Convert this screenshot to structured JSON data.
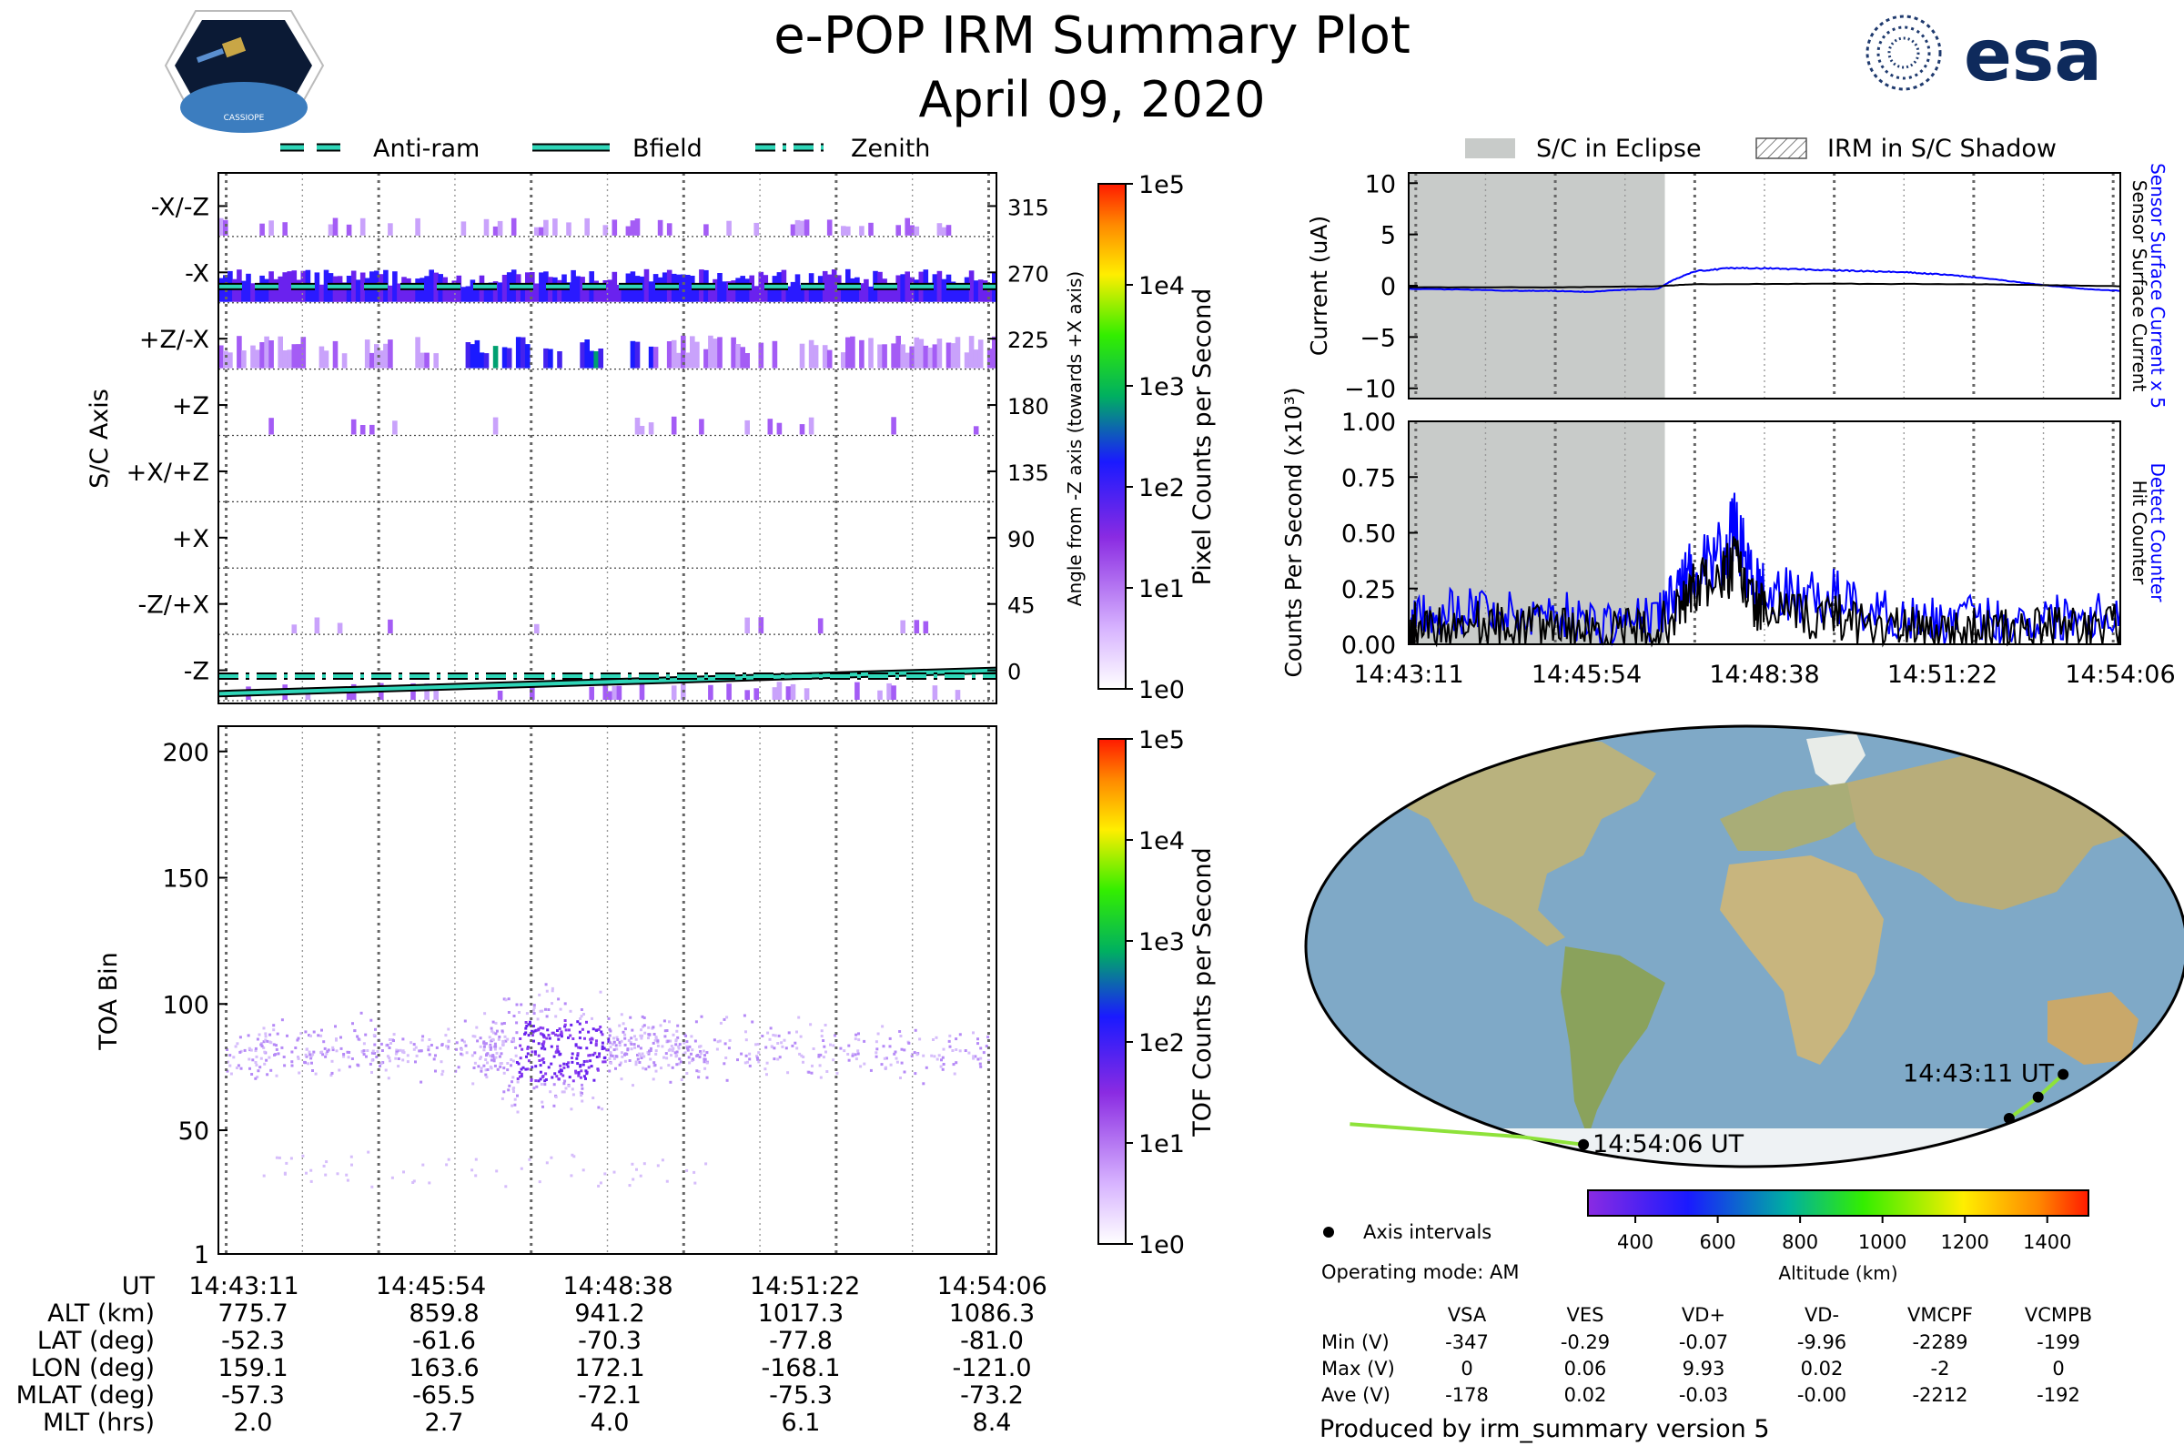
{
  "header": {
    "title_line1": "e-POP IRM Summary Plot",
    "title_line2": "April 09, 2020",
    "mission_logo_text": "CASSIOPE",
    "agency_logo_text": "esa"
  },
  "colors": {
    "legend_line": "#2fd6b8",
    "line_black": "#000000",
    "line_blue": "#0000ff",
    "eclipse_fill": "#c8cbc9",
    "ocean": "#7fa9c7",
    "land": "#c9c29a",
    "ice": "#eef2f4",
    "track": "#8ee23a"
  },
  "legends": {
    "top_left": {
      "anti_ram": "Anti-ram",
      "bfield": "Bfield",
      "zenith": "Zenith"
    },
    "top_right": {
      "eclipse": "S/C in Eclipse",
      "shadow": "IRM in S/C Shadow"
    },
    "map": {
      "axis_intervals": "Axis intervals"
    }
  },
  "time_ticks": [
    "14:43:11",
    "14:45:54",
    "14:48:38",
    "14:51:22",
    "14:54:06"
  ],
  "chart_data": [
    {
      "id": "sc-axis",
      "type": "heatmap",
      "title": "",
      "ylabel": "S/C Axis",
      "ylabel_right": "Angle from -Z axis (towards +X axis)",
      "categories": [
        "-X/-Z",
        "-X",
        "+Z/-X",
        "+Z",
        "+X/+Z",
        "+X",
        "-Z/+X",
        "-Z"
      ],
      "right_ticks": [
        "315",
        "270",
        "225",
        "180",
        "135",
        "90",
        "45",
        "0"
      ],
      "row_activity": [
        0.25,
        0.95,
        0.6,
        0.05,
        0.0,
        0.0,
        0.02,
        0.15
      ],
      "colorbar": {
        "label": "Pixel Counts per Second",
        "ticks": [
          "1e5",
          "1e4",
          "1e3",
          "1e2",
          "1e1",
          "1e0"
        ]
      },
      "series": [
        {
          "name": "Anti-ram",
          "angle_deg": [
            266,
            266
          ]
        },
        {
          "name": "Bfield",
          "angle_deg": [
            -12,
            4
          ]
        },
        {
          "name": "Zenith",
          "angle_deg": [
            0,
            0
          ]
        }
      ]
    },
    {
      "id": "toa",
      "type": "heatmap",
      "ylabel": "TOA Bin",
      "yticks": [
        "200",
        "150",
        "100",
        "50",
        "1"
      ],
      "ylim": [
        1,
        210
      ],
      "colorbar": {
        "label": "TOF Counts per Second",
        "ticks": [
          "1e5",
          "1e4",
          "1e3",
          "1e2",
          "1e1",
          "1e0"
        ]
      },
      "cluster_center_bin": 82
    },
    {
      "id": "current",
      "type": "line",
      "ylabel": "Current (uA)",
      "ylabel_right_1": "Sensor Surface Current x 5",
      "ylabel_right_2": "Sensor Surface Current",
      "yticks": [
        "10",
        "5",
        "0",
        "−5",
        "−10"
      ],
      "ylim": [
        -11,
        11
      ],
      "eclipse_until_fraction": 0.36,
      "series": [
        {
          "name": "Sensor Surface Current x 5",
          "x": [
            0,
            0.1,
            0.15,
            0.2,
            0.25,
            0.3,
            0.35,
            0.37,
            0.4,
            0.45,
            0.5,
            0.55,
            0.6,
            0.65,
            0.7,
            0.75,
            0.8,
            0.85,
            0.9,
            0.95,
            1.0
          ],
          "y": [
            -0.3,
            -0.4,
            -0.5,
            -0.5,
            -0.6,
            -0.4,
            -0.3,
            0.5,
            1.4,
            1.7,
            1.7,
            1.6,
            1.5,
            1.4,
            1.3,
            1.1,
            0.8,
            0.4,
            0.0,
            -0.3,
            -0.5
          ]
        },
        {
          "name": "Sensor Surface Current",
          "x": [
            0,
            0.2,
            0.35,
            0.4,
            0.6,
            0.8,
            0.9,
            1.0
          ],
          "y": [
            -0.15,
            -0.15,
            -0.05,
            0.15,
            0.2,
            0.15,
            0.05,
            -0.05
          ]
        }
      ]
    },
    {
      "id": "counts",
      "type": "line",
      "ylabel": "Counts Per Second (x10³)",
      "ylabel_right_1": "Detect Counter",
      "ylabel_right_2": "Hit Counter",
      "yticks": [
        "1.00",
        "0.75",
        "0.50",
        "0.25",
        "0.00"
      ],
      "ylim": [
        0,
        1.0
      ],
      "eclipse_until_fraction": 0.36,
      "series": [
        {
          "name": "Detect Counter",
          "x": [
            0,
            0.01,
            0.05,
            0.1,
            0.15,
            0.2,
            0.25,
            0.3,
            0.35,
            0.38,
            0.4,
            0.44,
            0.46,
            0.48,
            0.5,
            0.55,
            0.6,
            0.65,
            0.7,
            0.75,
            0.8,
            0.85,
            0.9,
            0.95,
            1.0
          ],
          "y": [
            0.0,
            0.17,
            0.15,
            0.17,
            0.12,
            0.15,
            0.1,
            0.1,
            0.12,
            0.25,
            0.35,
            0.4,
            0.52,
            0.3,
            0.25,
            0.2,
            0.22,
            0.15,
            0.12,
            0.1,
            0.12,
            0.1,
            0.12,
            0.14,
            0.15
          ]
        },
        {
          "name": "Hit Counter",
          "x": [
            0,
            0.01,
            0.05,
            0.1,
            0.15,
            0.2,
            0.25,
            0.3,
            0.35,
            0.38,
            0.4,
            0.44,
            0.46,
            0.48,
            0.5,
            0.55,
            0.6,
            0.65,
            0.7,
            0.75,
            0.8,
            0.85,
            0.9,
            0.95,
            1.0
          ],
          "y": [
            0.0,
            0.1,
            0.08,
            0.1,
            0.07,
            0.09,
            0.06,
            0.06,
            0.07,
            0.15,
            0.25,
            0.3,
            0.36,
            0.2,
            0.15,
            0.12,
            0.13,
            0.09,
            0.07,
            0.06,
            0.07,
            0.06,
            0.07,
            0.08,
            0.09
          ]
        }
      ]
    },
    {
      "id": "map",
      "type": "scatter",
      "labels": {
        "start": "14:43:11 UT",
        "end": "14:54:06 UT"
      },
      "colorbar": {
        "label": "Altitude (km)",
        "ticks": [
          "400",
          "600",
          "800",
          "1000",
          "1200",
          "1400"
        ]
      },
      "track_lon": [
        159.1,
        163.6,
        172.1,
        -168.1,
        -121.0
      ],
      "track_lat": [
        -52.3,
        -61.6,
        -70.3,
        -77.8,
        -81.0
      ]
    }
  ],
  "ephemeris": {
    "labels": [
      "UT",
      "ALT (km)",
      "LAT (deg)",
      "LON (deg)",
      "MLAT (deg)",
      "MLT (hrs)"
    ],
    "columns": [
      [
        "14:43:11",
        "775.7",
        "-52.3",
        "159.1",
        "-57.3",
        "2.0"
      ],
      [
        "14:45:54",
        "859.8",
        "-61.6",
        "163.6",
        "-65.5",
        "2.7"
      ],
      [
        "14:48:38",
        "941.2",
        "-70.3",
        "172.1",
        "-72.1",
        "4.0"
      ],
      [
        "14:51:22",
        "1017.3",
        "-77.8",
        "-168.1",
        "-75.3",
        "6.1"
      ],
      [
        "14:54:06",
        "1086.3",
        "-81.0",
        "-121.0",
        "-73.2",
        "8.4"
      ]
    ]
  },
  "voltages": {
    "mode": "Operating mode: AM",
    "headers": [
      "VSA",
      "VES",
      "VD+",
      "VD-",
      "VMCPF",
      "VCMPB"
    ],
    "rows": [
      {
        "label": "Min (V)",
        "values": [
          "-347",
          "-0.29",
          "-0.07",
          "-9.96",
          "-2289",
          "-199"
        ]
      },
      {
        "label": "Max (V)",
        "values": [
          "0",
          "0.06",
          "9.93",
          "0.02",
          "-2",
          "0"
        ]
      },
      {
        "label": "Ave (V)",
        "values": [
          "-178",
          "0.02",
          "-0.03",
          "-0.00",
          "-2212",
          "-192"
        ]
      }
    ]
  },
  "footer": {
    "produced_by": "Produced by irm_summary version 5"
  }
}
